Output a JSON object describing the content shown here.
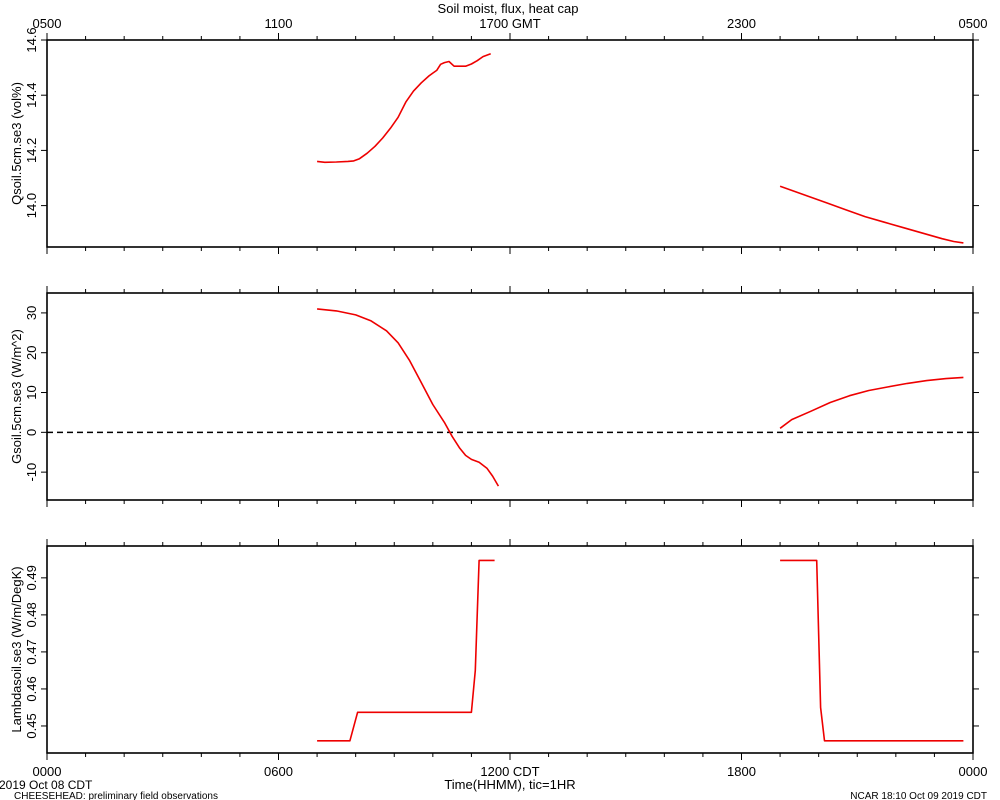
{
  "figure": {
    "title": "Soil moist, flux, heat cap",
    "top_axis": {
      "tick_labels": [
        "0500",
        "1100",
        "1700 GMT",
        "2300",
        "0500"
      ]
    },
    "bottom_axis": {
      "tick_labels": [
        "0000",
        "0600",
        "1200 CDT",
        "1800",
        "0000"
      ],
      "xlabel": "Time(HHMM), tic=1HR"
    },
    "footer_left_date": "2019 Oct 08 CDT",
    "footer_left_project": "CHEESEHEAD: preliminary field observations",
    "footer_right": "NCAR 18:10 Oct 09 2019 CDT"
  },
  "colors": {
    "line": "#ee0000",
    "axis": "#000000",
    "zero_line": "#000000"
  },
  "chart_data": [
    {
      "type": "line",
      "ylabel": "Qsoil.5cm.se3 (vol%)",
      "xlim": [
        0,
        24
      ],
      "ylim": [
        13.85,
        14.6
      ],
      "yticks": [
        14.0,
        14.2,
        14.4,
        14.6
      ],
      "ytick_labels": [
        "14.0",
        "14.2",
        "14.4",
        "14.6"
      ],
      "series": [
        {
          "segments": [
            [
              [
                7.0,
                14.16
              ],
              [
                7.2,
                14.157
              ],
              [
                7.5,
                14.158
              ],
              [
                7.8,
                14.16
              ],
              [
                7.95,
                14.162
              ],
              [
                8.1,
                14.17
              ],
              [
                8.3,
                14.19
              ],
              [
                8.5,
                14.215
              ],
              [
                8.7,
                14.245
              ],
              [
                8.9,
                14.28
              ],
              [
                9.1,
                14.32
              ],
              [
                9.3,
                14.375
              ],
              [
                9.5,
                14.415
              ],
              [
                9.7,
                14.445
              ],
              [
                9.9,
                14.47
              ],
              [
                10.0,
                14.48
              ],
              [
                10.1,
                14.49
              ],
              [
                10.2,
                14.512
              ],
              [
                10.3,
                14.518
              ],
              [
                10.42,
                14.522
              ],
              [
                10.55,
                14.505
              ],
              [
                10.85,
                14.505
              ],
              [
                11.0,
                14.513
              ],
              [
                11.15,
                14.525
              ],
              [
                11.3,
                14.54
              ],
              [
                11.5,
                14.55
              ]
            ],
            [
              [
                19.0,
                14.07
              ],
              [
                19.3,
                14.055
              ],
              [
                19.7,
                14.035
              ],
              [
                20.2,
                14.01
              ],
              [
                20.7,
                13.985
              ],
              [
                21.2,
                13.96
              ],
              [
                21.7,
                13.94
              ],
              [
                22.2,
                13.92
              ],
              [
                22.7,
                13.9
              ],
              [
                23.2,
                13.88
              ],
              [
                23.5,
                13.87
              ],
              [
                23.75,
                13.865
              ]
            ]
          ]
        }
      ]
    },
    {
      "type": "line",
      "ylabel": "Gsoil.5cm.se3 (W/m^2)",
      "xlim": [
        0,
        24
      ],
      "ylim": [
        -17,
        35
      ],
      "yticks": [
        -10,
        0,
        10,
        20,
        30
      ],
      "ytick_labels": [
        "-10",
        "0",
        "10",
        "20",
        "30"
      ],
      "reference_line": 0,
      "series": [
        {
          "segments": [
            [
              [
                7.0,
                31
              ],
              [
                7.5,
                30.5
              ],
              [
                8.0,
                29.5
              ],
              [
                8.4,
                28
              ],
              [
                8.8,
                25.5
              ],
              [
                9.1,
                22.5
              ],
              [
                9.4,
                18
              ],
              [
                9.7,
                12.5
              ],
              [
                10.0,
                7
              ],
              [
                10.3,
                2.5
              ],
              [
                10.5,
                -1
              ],
              [
                10.7,
                -4
              ],
              [
                10.85,
                -5.8
              ],
              [
                11.0,
                -6.8
              ],
              [
                11.2,
                -7.5
              ],
              [
                11.4,
                -9
              ],
              [
                11.55,
                -11
              ],
              [
                11.7,
                -13.5
              ]
            ],
            [
              [
                19.0,
                1
              ],
              [
                19.3,
                3.2
              ],
              [
                19.8,
                5.3
              ],
              [
                20.3,
                7.5
              ],
              [
                20.8,
                9.2
              ],
              [
                21.3,
                10.5
              ],
              [
                21.8,
                11.4
              ],
              [
                22.3,
                12.3
              ],
              [
                22.8,
                13
              ],
              [
                23.3,
                13.5
              ],
              [
                23.75,
                13.8
              ]
            ]
          ]
        }
      ]
    },
    {
      "type": "line",
      "ylabel": "Lambdasoil.se3 (W/m/DegK)",
      "xlim": [
        0,
        24
      ],
      "ylim": [
        0.4427,
        0.4986
      ],
      "yticks": [
        0.45,
        0.46,
        0.47,
        0.48,
        0.49
      ],
      "ytick_labels": [
        "0.45",
        "0.46",
        "0.47",
        "0.48",
        "0.49"
      ],
      "series": [
        {
          "segments": [
            [
              [
                7.0,
                0.446
              ],
              [
                7.85,
                0.446
              ],
              [
                8.05,
                0.4537
              ],
              [
                11.0,
                0.4537
              ],
              [
                11.1,
                0.465
              ],
              [
                11.2,
                0.4947
              ],
              [
                11.6,
                0.4947
              ]
            ],
            [
              [
                19.0,
                0.4947
              ],
              [
                19.95,
                0.4947
              ],
              [
                20.05,
                0.455
              ],
              [
                20.15,
                0.446
              ],
              [
                23.75,
                0.446
              ]
            ]
          ]
        }
      ]
    }
  ]
}
